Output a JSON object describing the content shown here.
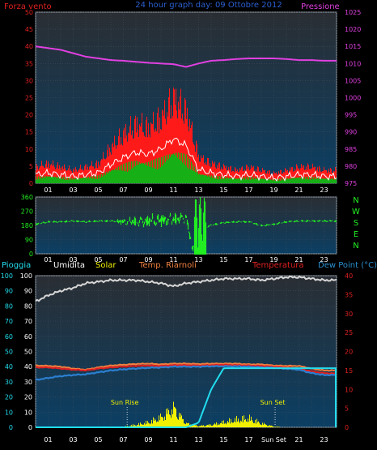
{
  "header": {
    "left_label": "Forza vento",
    "title": "24 hour graph day: 09 Ottobre 2012",
    "right_label": "Pressione"
  },
  "x_axis": {
    "tick_labels": [
      "01",
      "03",
      "05",
      "07",
      "09",
      "11",
      "13",
      "15",
      "17",
      "19",
      "21",
      "23"
    ],
    "bottom_tick_labels": [
      "01",
      "03",
      "05",
      "07",
      "09",
      "11",
      "13",
      "15",
      "17",
      "Sun Set",
      "21",
      "23"
    ]
  },
  "colors": {
    "wind_gust": "#ff1a1a",
    "wind_avg": "#ffffff",
    "wind_low": "#16b016",
    "pressure": "#e040e0",
    "direction": "#22ee22",
    "humidity": "#d6d6d6",
    "solar": "#f0f000",
    "temp_riarnoli": "#f08040",
    "temperature": "#e02020",
    "dew_point": "#2b7fd0",
    "rain": "#22ddee",
    "humidity_label": "#ffffff",
    "rain_label": "#22ddee",
    "temp_label": "#e02020",
    "dew_label": "#2b8fd0",
    "riarnoli_label": "#f08040",
    "solar_label": "#f0f000"
  },
  "chart_data": [
    {
      "type": "line",
      "panel": "wind_pressure",
      "y_left_ticks": [
        0,
        5,
        10,
        15,
        20,
        25,
        30,
        35,
        40,
        45,
        50
      ],
      "y_right_ticks": [
        975,
        980,
        985,
        990,
        995,
        1000,
        1005,
        1010,
        1015,
        1020,
        1025
      ],
      "ylim_left": [
        0,
        50
      ],
      "ylim_right": [
        975,
        1025
      ],
      "x": [
        0,
        1,
        2,
        3,
        4,
        5,
        6,
        7,
        8,
        9,
        10,
        11,
        12,
        13,
        14,
        15,
        16,
        17,
        18,
        19,
        20,
        21,
        22,
        23,
        24
      ],
      "series": [
        {
          "name": "Forza vento",
          "values": [
            5,
            6,
            5,
            4,
            5,
            6,
            11,
            15,
            18,
            17,
            20,
            26,
            22,
            8,
            6,
            5,
            4,
            5,
            4,
            3,
            4,
            5,
            5,
            4,
            4
          ]
        },
        {
          "name": "Pressione",
          "axis": "right",
          "values": [
            1015,
            1014.5,
            1014,
            1013,
            1012,
            1011.5,
            1011,
            1010.8,
            1010.5,
            1010.2,
            1010,
            1009.8,
            1009,
            1010,
            1010.8,
            1011,
            1011.3,
            1011.5,
            1011.5,
            1011.5,
            1011.3,
            1011,
            1011,
            1010.8,
            1010.8
          ]
        }
      ]
    },
    {
      "type": "scatter",
      "panel": "wind_direction",
      "y_ticks": [
        0,
        90,
        180,
        270,
        360
      ],
      "compass_labels": [
        "N",
        "W",
        "S",
        "E",
        "N"
      ],
      "ylim": [
        0,
        360
      ],
      "x": [
        0,
        1,
        2,
        3,
        4,
        5,
        6,
        7,
        8,
        9,
        10,
        11,
        12,
        12.5,
        13,
        14,
        15,
        16,
        17,
        18,
        19,
        20,
        21,
        22,
        23,
        24
      ],
      "values": [
        190,
        205,
        205,
        210,
        205,
        210,
        210,
        205,
        205,
        210,
        215,
        220,
        230,
        20,
        150,
        185,
        200,
        205,
        205,
        180,
        190,
        205,
        210,
        210,
        210,
        210
      ]
    },
    {
      "type": "line",
      "panel": "rain_humidity_solar_temp",
      "labels": {
        "rain": "Pioggia",
        "humidity": "Umidita",
        "solar": "Solar",
        "temp_riarnoli": "Temp. Riarnoli",
        "temperature": "Temperatura",
        "dew_point": "Dew Point (°C)",
        "sunrise": "Sun Rise",
        "sunset": "Sun Set"
      },
      "y_left_ticks": [
        0,
        10,
        20,
        30,
        40,
        50,
        60,
        70,
        80,
        90,
        100
      ],
      "y_right_ticks": [
        0,
        5,
        10,
        15,
        20,
        25,
        30,
        35,
        40
      ],
      "ylim_left": [
        0,
        100
      ],
      "ylim_right": [
        0,
        40
      ],
      "sunrise_hour": 7.3,
      "sunset_hour": 19.1,
      "x": [
        0,
        1,
        2,
        3,
        4,
        5,
        6,
        7,
        8,
        9,
        10,
        11,
        12,
        13,
        14,
        15,
        16,
        17,
        18,
        19,
        20,
        21,
        22,
        23,
        24
      ],
      "series": [
        {
          "name": "Umidita",
          "axis": "left",
          "values": [
            83,
            87,
            90,
            92,
            95,
            96,
            97,
            97,
            97,
            96,
            95,
            93,
            95,
            96,
            97,
            98,
            98,
            98,
            97,
            98,
            99,
            99,
            98,
            97,
            97
          ]
        },
        {
          "name": "Temp. Riarnoli",
          "axis": "right",
          "values": [
            16.3,
            16.2,
            16.0,
            15.5,
            15.2,
            15.8,
            16.3,
            16.5,
            16.7,
            16.8,
            16.6,
            16.8,
            16.8,
            16.7,
            16.8,
            16.8,
            16.8,
            16.6,
            16.6,
            16.3,
            16.2,
            16.2,
            15.5,
            15.0,
            15.0
          ]
        },
        {
          "name": "Temperatura",
          "axis": "right",
          "values": [
            15.8,
            15.8,
            15.5,
            15.2,
            15.0,
            15.5,
            15.8,
            16.0,
            16.2,
            16.3,
            16.2,
            16.4,
            16.4,
            16.3,
            16.4,
            16.5,
            16.4,
            16.3,
            16.2,
            16.0,
            15.8,
            15.5,
            14.8,
            14.3,
            14.2
          ]
        },
        {
          "name": "Dew Point (°C)",
          "axis": "right",
          "values": [
            12.5,
            13.0,
            13.5,
            13.8,
            14.0,
            14.5,
            15.0,
            15.3,
            15.5,
            15.7,
            15.8,
            16.0,
            16.0,
            16.0,
            16.1,
            16.1,
            16.1,
            16.0,
            15.8,
            15.7,
            15.5,
            15.2,
            14.3,
            13.8,
            13.8
          ]
        },
        {
          "name": "Pioggia",
          "axis": "left",
          "values": [
            0,
            0,
            0,
            0,
            0,
            0,
            0,
            0,
            0,
            0,
            0,
            0,
            0,
            3,
            25,
            39,
            39,
            39,
            39,
            39,
            39,
            39,
            39,
            39,
            39
          ]
        },
        {
          "name": "Solar",
          "axis": "left",
          "values": [
            0,
            0,
            0,
            0,
            0,
            0,
            0,
            0.5,
            2,
            4,
            8,
            15,
            3,
            1,
            2,
            4,
            6,
            7,
            3,
            0.5,
            0,
            0,
            0,
            0,
            0
          ]
        }
      ]
    }
  ]
}
